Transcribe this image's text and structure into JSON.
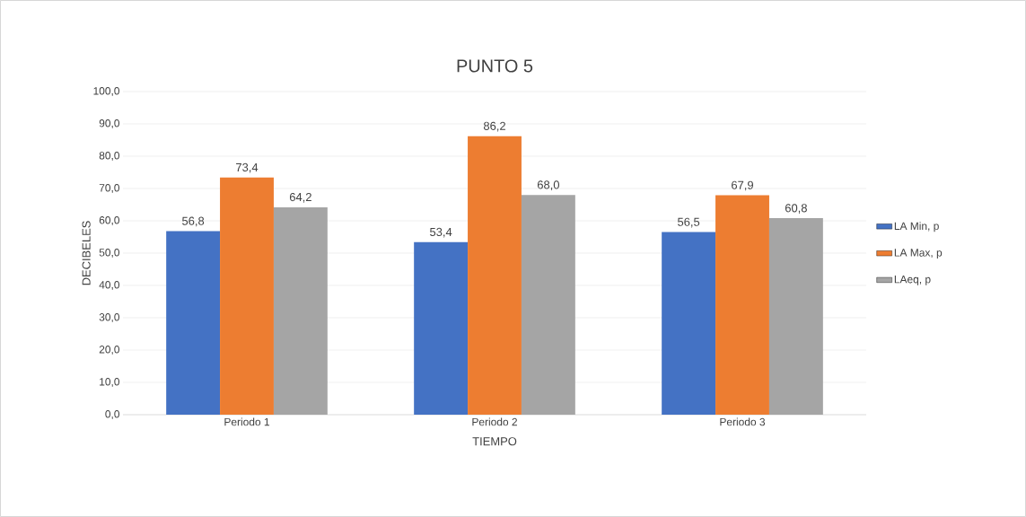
{
  "chart_data": {
    "type": "bar",
    "title": "PUNTO 5",
    "xlabel": "TIEMPO",
    "ylabel": "DECIBELES",
    "categories": [
      "Periodo 1",
      "Periodo 2",
      "Periodo 3"
    ],
    "series": [
      {
        "name": "LA Min, p",
        "color": "#4472c4",
        "values": [
          56.8,
          53.4,
          56.5
        ],
        "value_labels": [
          "56,8",
          "53,4",
          "56,5"
        ]
      },
      {
        "name": "LA Max, p",
        "color": "#ed7d31",
        "values": [
          73.4,
          86.2,
          67.9
        ],
        "value_labels": [
          "73,4",
          "86,2",
          "67,9"
        ]
      },
      {
        "name": "LAeq, p",
        "color": "#a5a5a5",
        "values": [
          64.2,
          68.0,
          60.8
        ],
        "value_labels": [
          "64,2",
          "68,0",
          "60,8"
        ]
      }
    ],
    "ylim": [
      0,
      100
    ],
    "yticks": [
      {
        "value": 0,
        "label": "0,0"
      },
      {
        "value": 10,
        "label": "10,0"
      },
      {
        "value": 20,
        "label": "20,0"
      },
      {
        "value": 30,
        "label": "30,0"
      },
      {
        "value": 40,
        "label": "40,0"
      },
      {
        "value": 50,
        "label": "50,0"
      },
      {
        "value": 60,
        "label": "60,0"
      },
      {
        "value": 70,
        "label": "70,0"
      },
      {
        "value": 80,
        "label": "80,0"
      },
      {
        "value": 90,
        "label": "90,0"
      },
      {
        "value": 100,
        "label": "100,0"
      }
    ],
    "grid": "y",
    "legend": "right"
  }
}
